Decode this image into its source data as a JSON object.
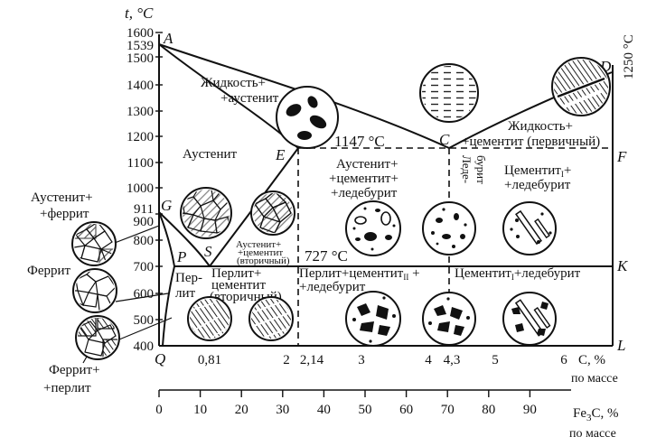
{
  "chart_data": {
    "type": "phase-diagram",
    "y_axis": {
      "label": "t, °C",
      "ticks": [
        {
          "v": 1600,
          "label": "1600"
        },
        {
          "v": 1539,
          "label": "1539"
        },
        {
          "v": 1500,
          "label": "1500"
        },
        {
          "v": 1400,
          "label": "1400"
        },
        {
          "v": 1300,
          "label": "1300"
        },
        {
          "v": 1200,
          "label": "1200"
        },
        {
          "v": 1100,
          "label": "1100"
        },
        {
          "v": 1000,
          "label": "1000"
        },
        {
          "v": 911,
          "label": "911"
        },
        {
          "v": 900,
          "label": "900"
        },
        {
          "v": 800,
          "label": "800"
        },
        {
          "v": 700,
          "label": "700"
        },
        {
          "v": 600,
          "label": "600"
        },
        {
          "v": 500,
          "label": "500"
        },
        {
          "v": 400,
          "label": "400"
        }
      ],
      "range": [
        400,
        1600
      ]
    },
    "x_axis_c": {
      "ticks": [
        {
          "v": 0.81,
          "label": "0,81"
        },
        {
          "v": 2,
          "label": "2"
        },
        {
          "v": 2.14,
          "label": "2,14"
        },
        {
          "v": 3,
          "label": "3"
        },
        {
          "v": 4,
          "label": "4"
        },
        {
          "v": 4.3,
          "label": "4,3"
        },
        {
          "v": 5,
          "label": "5"
        },
        {
          "v": 6,
          "label": "6"
        }
      ],
      "unit_label": "C, %",
      "unit_sublabel": "по массе",
      "range": [
        0,
        6.67
      ]
    },
    "x_axis_fe3c": {
      "ticks": [
        0,
        10,
        20,
        30,
        40,
        50,
        60,
        70,
        80,
        90
      ],
      "unit_label_main": "Fe",
      "unit_label_sub": "3",
      "unit_label_rest": "C, %",
      "unit_sublabel": "по массе",
      "range": [
        0,
        100
      ]
    },
    "points": [
      {
        "name": "A",
        "c": 0,
        "t": 1539
      },
      {
        "name": "C",
        "c": 4.3,
        "t": 1147
      },
      {
        "name": "D",
        "c": 6.67,
        "t": 1250
      },
      {
        "name": "E",
        "c": 2.14,
        "t": 1147
      },
      {
        "name": "F",
        "c": 6.67,
        "t": 1147
      },
      {
        "name": "G",
        "c": 0,
        "t": 911
      },
      {
        "name": "P",
        "c": 0.02,
        "t": 727
      },
      {
        "name": "S",
        "c": 0.81,
        "t": 727
      },
      {
        "name": "K",
        "c": 6.67,
        "t": 727
      },
      {
        "name": "Q",
        "c": 0,
        "t": 400
      },
      {
        "name": "L",
        "c": 6.67,
        "t": 400
      }
    ],
    "lines": {
      "liquidus": [
        "A",
        "C",
        "D"
      ],
      "solidus": [
        "A",
        "E"
      ],
      "eutectic": [
        "E",
        "F"
      ],
      "eutectoid": [
        "P",
        "K"
      ],
      "gs": [
        "G",
        "S"
      ],
      "gp": [
        "G",
        "P"
      ],
      "pq": [
        "P",
        "Q"
      ],
      "es": [
        "E",
        "S"
      ],
      "verticals": [
        2.14,
        4.3
      ]
    },
    "temperature_labels": {
      "eutectic": "1147 °C",
      "eutectoid": "727 °C",
      "right_axis": "1250 °C"
    },
    "phase_labels": {
      "liquid_austenite_1": "Жидкость+",
      "liquid_austenite_2": "+аустенит",
      "austenite": "Аустенит",
      "aust_ferrite_1": "Аустенит+",
      "aust_ferrite_2": "+феррит",
      "aust_cem_led_1": "Аустенит+",
      "aust_cem_led_2": "+цементит+",
      "aust_cem_led_3": "+ледебурит",
      "ledeburite_1": "Леде-",
      "ledeburite_2": "бурит",
      "liquid_cem_1": "Жидкость+",
      "liquid_cem_2": "+цементит (первичный)",
      "cem1_led_1": "Цементит",
      "cem1_led_sub": "I",
      "cem1_led_plus": "+",
      "cem1_led_2": "+ледебурит",
      "aust_cem2_1": "Аустенит+",
      "aust_cem2_2": "+цементит",
      "aust_cem2_3": "(вторичный)",
      "ferrite": "Феррит",
      "pearlite_1": "Пер-",
      "pearlite_2": "лит",
      "pearlite_cem2_1": "Перлит+",
      "pearlite_cem2_2": "цементит",
      "pearlite_cem2_3": "(вторичный)",
      "pearl_cem_led_1": "Перлит+цементит",
      "pearl_cem_led_sub": "II",
      "pearl_cem_led_plus": " +",
      "pearl_cem_led_2": "+ледебурит",
      "cem1_led_low_1": "Цементит",
      "cem1_led_low_sub": "I",
      "cem1_led_low_2": "+ледебурит",
      "ferrite_pearlite_1": "Феррит+",
      "ferrite_pearlite_2": "+перлит"
    },
    "colors": {
      "line": "#111111",
      "hatch": "#222222"
    }
  }
}
